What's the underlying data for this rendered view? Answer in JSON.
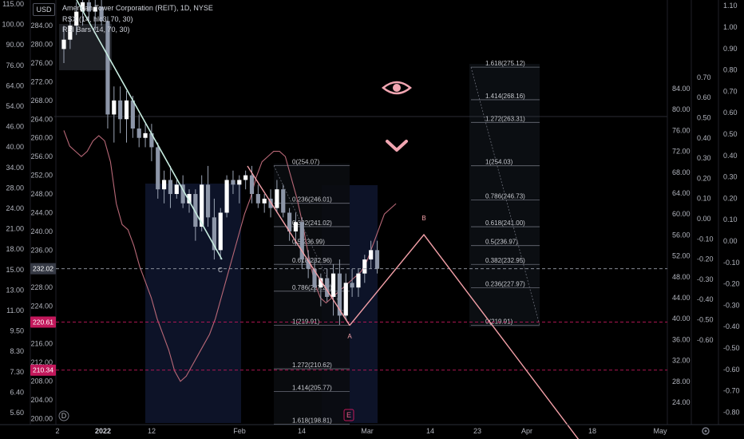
{
  "header": {
    "currency": "USD",
    "title_line": "American Tower Corporation (REIT), 1D, NYSE",
    "indicator_1": "RSX (14, hlc3, 70, 30)",
    "indicator_2": "RSI Bars (14, 70, 30)"
  },
  "colors": {
    "up": "#ffffff",
    "down": "#8d96a8",
    "wick": "#9aa3b3",
    "zigzag": "#f4a0a8",
    "trendline": "#c8ede1",
    "rsx_line": "#b86877",
    "fib_line": "#6a6d78",
    "dashed_level": "#c2185b",
    "price_badge": "#363a45"
  },
  "chart_data": {
    "type": "candlestick",
    "symbol": "American Tower Corporation (REIT)",
    "interval": "1D",
    "exchange": "NYSE",
    "current_price": 232.02,
    "price_axis_right": [
      "200.00",
      "204.00",
      "208.00",
      "212.00",
      "216.00",
      "220.00",
      "224.00",
      "228.00",
      "232.00",
      "236.00",
      "240.00",
      "244.00",
      "248.00",
      "252.00",
      "256.00",
      "260.00",
      "264.00",
      "268.00",
      "272.00",
      "276.00",
      "280.00",
      "284.00"
    ],
    "price_badges": [
      {
        "value": "232.02",
        "color": "#363a45"
      },
      {
        "value": "220.61",
        "color": "#c2185b"
      },
      {
        "value": "210.34",
        "color": "#c2185b"
      }
    ],
    "left_axis_1": [
      "5.60",
      "6.40",
      "7.30",
      "8.30",
      "9.50",
      "11.00",
      "13.00",
      "15.00",
      "18.00",
      "21.00",
      "24.00",
      "28.00",
      "34.00",
      "40.00",
      "46.00",
      "54.00",
      "64.00",
      "76.00",
      "90.00",
      "100.00",
      "115.00"
    ],
    "left_axis_2": [],
    "right_axis_1": [
      "24.00",
      "28.00",
      "32.00",
      "36.00",
      "40.00",
      "44.00",
      "48.00",
      "52.00",
      "56.00",
      "60.00",
      "64.00",
      "68.00",
      "72.00",
      "76.00",
      "80.00",
      "84.00"
    ],
    "right_axis_2": [
      "-0.60",
      "-0.50",
      "-0.40",
      "-0.30",
      "-0.20",
      "-0.10",
      "0.00",
      "0.10",
      "0.20",
      "0.30",
      "0.40",
      "0.50",
      "0.60",
      "0.70"
    ],
    "right_axis_3": [
      "-0.80",
      "-0.70",
      "-0.60",
      "-0.50",
      "-0.40",
      "-0.30",
      "-0.20",
      "-0.10",
      "0.00",
      "0.10",
      "0.20",
      "0.30",
      "0.40",
      "0.50",
      "0.60",
      "0.70",
      "0.80",
      "0.90",
      "1.00",
      "1.10"
    ],
    "x_labels": [
      "2",
      "2022",
      "12",
      "Feb",
      "14",
      "Mar",
      "14",
      "23",
      "Apr",
      "18",
      "May"
    ],
    "candles": [
      {
        "o": 279,
        "h": 284,
        "l": 276,
        "c": 281
      },
      {
        "o": 281,
        "h": 286,
        "l": 279,
        "c": 284
      },
      {
        "o": 284,
        "h": 289,
        "l": 282,
        "c": 287
      },
      {
        "o": 287,
        "h": 291,
        "l": 284,
        "c": 289
      },
      {
        "o": 289,
        "h": 292,
        "l": 285,
        "c": 287
      },
      {
        "o": 287,
        "h": 290,
        "l": 283,
        "c": 288
      },
      {
        "o": 288,
        "h": 290,
        "l": 284,
        "c": 285
      },
      {
        "o": 285,
        "h": 286,
        "l": 262,
        "c": 265
      },
      {
        "o": 265,
        "h": 271,
        "l": 259,
        "c": 268
      },
      {
        "o": 268,
        "h": 271,
        "l": 261,
        "c": 264
      },
      {
        "o": 264,
        "h": 270,
        "l": 259,
        "c": 268
      },
      {
        "o": 268,
        "h": 269,
        "l": 260,
        "c": 262
      },
      {
        "o": 262,
        "h": 265,
        "l": 258,
        "c": 260
      },
      {
        "o": 260,
        "h": 263,
        "l": 258,
        "c": 261
      },
      {
        "o": 261,
        "h": 263,
        "l": 255,
        "c": 258
      },
      {
        "o": 258,
        "h": 259,
        "l": 247,
        "c": 249
      },
      {
        "o": 249,
        "h": 253,
        "l": 246,
        "c": 251
      },
      {
        "o": 251,
        "h": 254,
        "l": 245,
        "c": 248
      },
      {
        "o": 248,
        "h": 251,
        "l": 247,
        "c": 250
      },
      {
        "o": 250,
        "h": 252,
        "l": 245,
        "c": 246
      },
      {
        "o": 246,
        "h": 249,
        "l": 244,
        "c": 248
      },
      {
        "o": 248,
        "h": 249,
        "l": 238,
        "c": 241
      },
      {
        "o": 241,
        "h": 252,
        "l": 240,
        "c": 250
      },
      {
        "o": 250,
        "h": 254,
        "l": 241,
        "c": 243
      },
      {
        "o": 243,
        "h": 247,
        "l": 234,
        "c": 236
      },
      {
        "o": 236,
        "h": 245,
        "l": 234,
        "c": 244
      },
      {
        "o": 244,
        "h": 252,
        "l": 243,
        "c": 251
      },
      {
        "o": 251,
        "h": 253,
        "l": 248,
        "c": 250
      },
      {
        "o": 250,
        "h": 252,
        "l": 246,
        "c": 251
      },
      {
        "o": 251,
        "h": 253,
        "l": 249,
        "c": 252
      },
      {
        "o": 252,
        "h": 254,
        "l": 246,
        "c": 248
      },
      {
        "o": 248,
        "h": 250,
        "l": 245,
        "c": 246
      },
      {
        "o": 246,
        "h": 248,
        "l": 244,
        "c": 247
      },
      {
        "o": 247,
        "h": 249,
        "l": 243,
        "c": 245
      },
      {
        "o": 245,
        "h": 251,
        "l": 244,
        "c": 249
      },
      {
        "o": 249,
        "h": 250,
        "l": 243,
        "c": 244
      },
      {
        "o": 244,
        "h": 245,
        "l": 238,
        "c": 240
      },
      {
        "o": 240,
        "h": 244,
        "l": 237,
        "c": 242
      },
      {
        "o": 242,
        "h": 243,
        "l": 232,
        "c": 234
      },
      {
        "o": 234,
        "h": 236,
        "l": 230,
        "c": 232
      },
      {
        "o": 232,
        "h": 234,
        "l": 227,
        "c": 228
      },
      {
        "o": 228,
        "h": 231,
        "l": 224,
        "c": 230
      },
      {
        "o": 230,
        "h": 232,
        "l": 225,
        "c": 226
      },
      {
        "o": 226,
        "h": 233,
        "l": 222,
        "c": 231
      },
      {
        "o": 231,
        "h": 234,
        "l": 220,
        "c": 222
      },
      {
        "o": 222,
        "h": 231,
        "l": 221,
        "c": 229
      },
      {
        "o": 229,
        "h": 232,
        "l": 226,
        "c": 228
      },
      {
        "o": 228,
        "h": 232,
        "l": 226,
        "c": 231
      },
      {
        "o": 231,
        "h": 235,
        "l": 229,
        "c": 234
      },
      {
        "o": 234,
        "h": 238,
        "l": 232,
        "c": 236
      },
      {
        "o": 236,
        "h": 238,
        "l": 231,
        "c": 232
      }
    ],
    "fib_retracement": {
      "levels": [
        {
          "label": "0(254.07)",
          "value": 254.07
        },
        {
          "label": "0.236(246.01)",
          "value": 246.01
        },
        {
          "label": "0.382(241.02)",
          "value": 241.02
        },
        {
          "label": "0.5(236.99)",
          "value": 236.99
        },
        {
          "label": "0.618(232.96)",
          "value": 232.96
        },
        {
          "label": "0.786(227.22)",
          "value": 227.22
        },
        {
          "label": "1(219.91)",
          "value": 219.91
        },
        {
          "label": "1.272(210.62)",
          "value": 210.62
        },
        {
          "label": "1.414(205.77)",
          "value": 205.77
        },
        {
          "label": "1.618(198.81)",
          "value": 198.81
        }
      ]
    },
    "fib_extension": {
      "levels": [
        {
          "label": "1.618(275.12)",
          "value": 275.12
        },
        {
          "label": "1.414(268.16)",
          "value": 268.16
        },
        {
          "label": "1.272(263.31)",
          "value": 263.31
        },
        {
          "label": "1(254.03)",
          "value": 254.03
        },
        {
          "label": "0.786(246.73)",
          "value": 246.73
        },
        {
          "label": "0.618(241.00)",
          "value": 241.0
        },
        {
          "label": "0.5(236.97)",
          "value": 236.97
        },
        {
          "label": "0.382(232.95)",
          "value": 232.95
        },
        {
          "label": "0.236(227.97)",
          "value": 227.97
        },
        {
          "label": "0(219.91)",
          "value": 219.91
        }
      ]
    },
    "zigzag": [
      {
        "label": "A",
        "value": 219.91
      },
      {
        "label": "B",
        "value": 239.3
      },
      {
        "label": "",
        "value": 195
      }
    ],
    "point_labels": [
      "C",
      "A",
      "B"
    ],
    "events": [
      "D",
      "E"
    ]
  }
}
